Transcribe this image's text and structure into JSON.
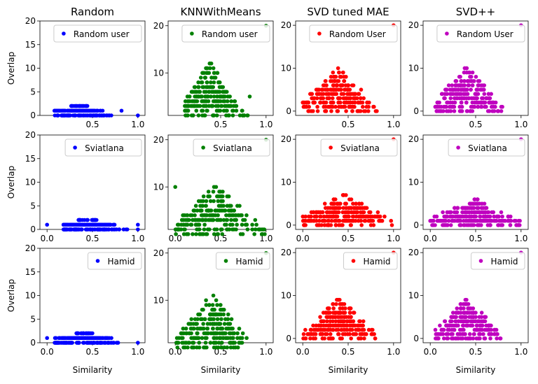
{
  "chart_data": {
    "type": "scatter",
    "grid": false,
    "legend_placement": "top-right",
    "columns": [
      {
        "title": "Random",
        "color": "#0000ff",
        "y_ticks": [
          0,
          5,
          10,
          15,
          20
        ],
        "ylim": [
          0,
          20
        ],
        "ylim_full": false
      },
      {
        "title": "KNNWithMeans",
        "color": "#008000",
        "y_ticks": [
          10,
          20
        ],
        "ylim": [
          1,
          21
        ],
        "ylim_full": true
      },
      {
        "title": "SVD tuned MAE",
        "color": "#ff0000",
        "y_ticks": [
          0,
          10,
          20
        ],
        "ylim": [
          -1,
          21
        ],
        "ylim_full": true
      },
      {
        "title": "SVD++",
        "color": "#bf00bf",
        "y_ticks": [
          0,
          10,
          20
        ],
        "ylim": [
          -1,
          21
        ],
        "ylim_full": true
      }
    ],
    "rows": [
      {
        "legend_labels": [
          "Random user",
          "Random user",
          "Random User",
          "Random User"
        ]
      },
      {
        "legend_labels": [
          "Sviatlana",
          "Sviatlana",
          "Sviatlana",
          "Sviatlana"
        ]
      },
      {
        "legend_labels": [
          "Hamid",
          "Hamid",
          "Hamid",
          "Hamid"
        ]
      }
    ],
    "xlabel": "Similarity",
    "ylabel": "Overlap",
    "x_ticks_top": [
      0.5,
      1.0
    ],
    "x_ticks_full": [
      0.0,
      0.5,
      1.0
    ],
    "y_ticks_left": [
      0,
      5,
      10,
      15,
      20
    ],
    "panels": [
      {
        "row": 0,
        "col": 0,
        "cloud": {
          "x": [
            0.08,
            0.72
          ],
          "center": 0.35,
          "ymax": 2
        },
        "outliers": [
          {
            "x": 0.82,
            "y": 1
          },
          {
            "x": 1.0,
            "y": 0
          }
        ]
      },
      {
        "row": 0,
        "col": 1,
        "cloud": {
          "x": [
            0.1,
            0.8
          ],
          "center": 0.38,
          "ymax": 12,
          "ymin": 1
        },
        "outliers": [
          {
            "x": 1.0,
            "y": 20
          },
          {
            "x": 0.82,
            "y": 5
          }
        ]
      },
      {
        "row": 0,
        "col": 2,
        "cloud": {
          "x": [
            0.0,
            0.82
          ],
          "center": 0.38,
          "ymax": 10,
          "ymin": 0
        },
        "outliers": [
          {
            "x": 1.0,
            "y": 20
          }
        ]
      },
      {
        "row": 0,
        "col": 3,
        "cloud": {
          "x": [
            0.05,
            0.8
          ],
          "center": 0.4,
          "ymax": 10,
          "ymin": 0
        },
        "outliers": [
          {
            "x": 1.0,
            "y": 20
          }
        ]
      },
      {
        "row": 1,
        "col": 0,
        "cloud": {
          "x": [
            0.18,
            0.9
          ],
          "center": 0.45,
          "ymax": 2
        },
        "outliers": [
          {
            "x": 0.0,
            "y": 1
          },
          {
            "x": 1.0,
            "y": 1
          },
          {
            "x": 1.0,
            "y": 0
          }
        ]
      },
      {
        "row": 1,
        "col": 1,
        "cloud": {
          "x": [
            0.0,
            1.0
          ],
          "center": 0.45,
          "ymax": 10,
          "ymin": 0
        },
        "outliers": [
          {
            "x": 1.0,
            "y": 20
          },
          {
            "x": 0.0,
            "y": 10
          }
        ]
      },
      {
        "row": 1,
        "col": 2,
        "cloud": {
          "x": [
            0.0,
            1.0
          ],
          "center": 0.45,
          "ymax": 7,
          "ymin": 0
        },
        "outliers": [
          {
            "x": 1.0,
            "y": 20
          }
        ]
      },
      {
        "row": 1,
        "col": 3,
        "cloud": {
          "x": [
            0.0,
            1.0
          ],
          "center": 0.48,
          "ymax": 6,
          "ymin": 0
        },
        "outliers": [
          {
            "x": 1.0,
            "y": 20
          }
        ]
      },
      {
        "row": 2,
        "col": 0,
        "cloud": {
          "x": [
            0.08,
            0.8
          ],
          "center": 0.4,
          "ymax": 2
        },
        "outliers": [
          {
            "x": 0.0,
            "y": 1
          },
          {
            "x": 1.0,
            "y": 0
          }
        ]
      },
      {
        "row": 2,
        "col": 1,
        "cloud": {
          "x": [
            0.0,
            0.8
          ],
          "center": 0.4,
          "ymax": 11,
          "ymin": 0
        },
        "outliers": [
          {
            "x": 1.0,
            "y": 20
          }
        ]
      },
      {
        "row": 2,
        "col": 2,
        "cloud": {
          "x": [
            0.0,
            0.8
          ],
          "center": 0.4,
          "ymax": 9,
          "ymin": 0
        },
        "outliers": [
          {
            "x": 1.0,
            "y": 20
          }
        ]
      },
      {
        "row": 2,
        "col": 3,
        "cloud": {
          "x": [
            0.05,
            0.78
          ],
          "center": 0.4,
          "ymax": 9,
          "ymin": 0
        },
        "outliers": [
          {
            "x": 1.0,
            "y": 20
          }
        ]
      }
    ]
  }
}
